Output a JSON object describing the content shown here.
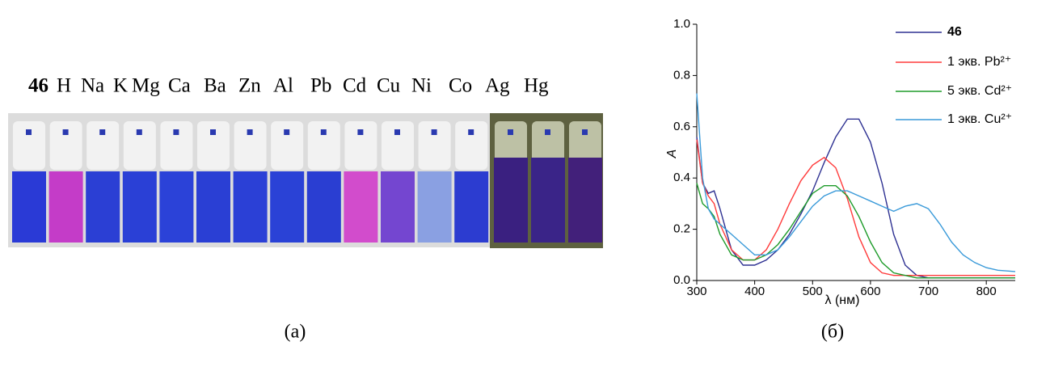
{
  "panel_a": {
    "labels": [
      "46",
      "H",
      "Na",
      "K",
      "Mg",
      "Ca",
      "Ba",
      "Zn",
      "Al",
      "Pb",
      "Cd",
      "Cu",
      "Ni",
      "Co",
      "Ag",
      "Hg"
    ],
    "caption": "(а)"
  },
  "panel_b": {
    "caption": "(б)"
  },
  "chart_data": {
    "type": "line",
    "xlabel": "λ (нм)",
    "ylabel": "A",
    "x": [
      300,
      310,
      320,
      330,
      340,
      360,
      380,
      400,
      420,
      440,
      460,
      480,
      500,
      520,
      540,
      560,
      580,
      600,
      620,
      640,
      660,
      680,
      700,
      720,
      740,
      760,
      780,
      800,
      820,
      850
    ],
    "series": [
      {
        "name": "46",
        "color": "#2e3192",
        "values": [
          0.56,
          0.38,
          0.34,
          0.35,
          0.28,
          0.12,
          0.06,
          0.06,
          0.08,
          0.12,
          0.18,
          0.26,
          0.35,
          0.46,
          0.56,
          0.63,
          0.63,
          0.54,
          0.38,
          0.18,
          0.06,
          0.02,
          0.01,
          0.01,
          0.01,
          0.01,
          0.01,
          0.01,
          0.01,
          0.01
        ]
      },
      {
        "name": "1 экв. Pb²⁺",
        "color": "#ff3b3b",
        "values": [
          0.55,
          0.38,
          0.33,
          0.3,
          0.22,
          0.12,
          0.08,
          0.08,
          0.12,
          0.2,
          0.3,
          0.39,
          0.45,
          0.48,
          0.44,
          0.32,
          0.17,
          0.07,
          0.03,
          0.02,
          0.02,
          0.02,
          0.02,
          0.02,
          0.02,
          0.02,
          0.02,
          0.02,
          0.02,
          0.02
        ]
      },
      {
        "name": "5 экв. Cd²⁺",
        "color": "#1e9b2a",
        "values": [
          0.38,
          0.3,
          0.28,
          0.25,
          0.18,
          0.1,
          0.08,
          0.08,
          0.1,
          0.14,
          0.2,
          0.27,
          0.34,
          0.37,
          0.37,
          0.33,
          0.25,
          0.15,
          0.07,
          0.03,
          0.02,
          0.01,
          0.01,
          0.01,
          0.01,
          0.01,
          0.01,
          0.01,
          0.01,
          0.01
        ]
      },
      {
        "name": "1 экв. Cu²⁺",
        "color": "#3a9ad9",
        "values": [
          0.73,
          0.4,
          0.28,
          0.24,
          0.22,
          0.18,
          0.14,
          0.1,
          0.1,
          0.12,
          0.17,
          0.23,
          0.29,
          0.33,
          0.35,
          0.35,
          0.33,
          0.31,
          0.29,
          0.27,
          0.29,
          0.3,
          0.28,
          0.22,
          0.15,
          0.1,
          0.07,
          0.05,
          0.04,
          0.035
        ]
      }
    ],
    "xlim": [
      300,
      850
    ],
    "ylim": [
      0,
      1
    ],
    "xticks": [
      300,
      400,
      500,
      600,
      700,
      800
    ],
    "yticks": [
      {
        "value": 0,
        "label": "0.0"
      },
      0.2,
      0.4,
      0.6,
      0.8,
      {
        "value": 1,
        "label": "1.0"
      }
    ]
  }
}
